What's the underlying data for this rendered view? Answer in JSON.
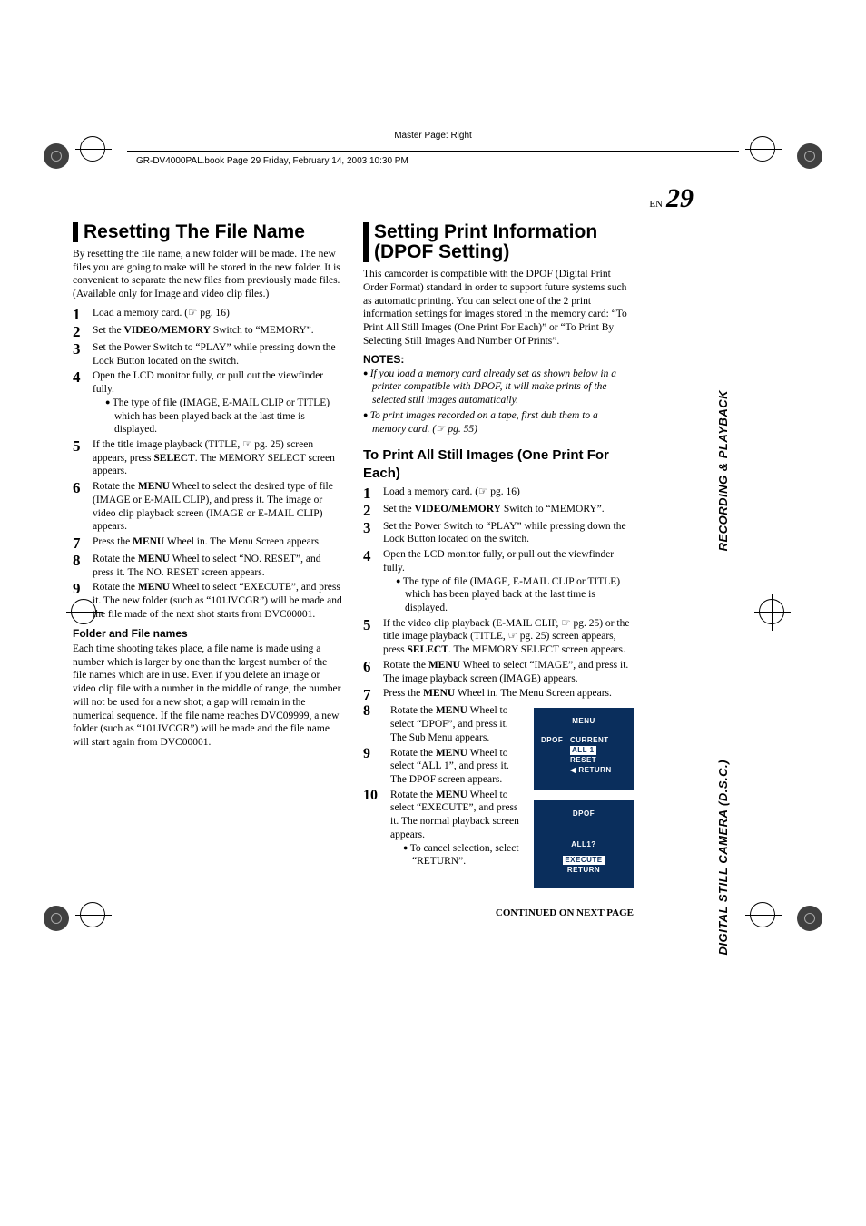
{
  "masterPage": "Master Page: Right",
  "headerText": "GR-DV4000PAL.book  Page 29  Friday, February 14, 2003  10:30 PM",
  "pageLabel": {
    "prefix": "EN",
    "number": "29"
  },
  "sideTabs": [
    "RECORDING & PLAYBACK",
    "DIGITAL STILL CAMERA (D.S.C.)"
  ],
  "left": {
    "title": "Resetting The File Name",
    "intro": "By resetting the file name, a new folder will be made. The new files you are going to make will be stored in the new folder. It is convenient to separate the new files from previously made files. (Available only for Image and video clip files.)",
    "steps": [
      {
        "n": "1",
        "text": "Load a memory card. (☞ pg. 16)"
      },
      {
        "n": "2",
        "html": "Set the <b class='term'>VIDEO/MEMORY</b> Switch to “MEMORY”."
      },
      {
        "n": "3",
        "text": "Set the Power Switch to “PLAY” while pressing down the Lock Button located on the switch."
      },
      {
        "n": "4",
        "text": "Open the LCD monitor fully, or pull out the viewfinder fully.",
        "bullets": [
          "The type of file (IMAGE, E-MAIL CLIP or TITLE) which has been played back at the last time is displayed."
        ]
      },
      {
        "n": "5",
        "html": "If the title image playback (TITLE, ☞ pg. 25) screen appears, press <b class='term'>SELECT</b>. The MEMORY SELECT screen appears."
      },
      {
        "n": "6",
        "html": "Rotate the <b class='term'>MENU</b> Wheel to select the desired type of file (IMAGE or E-MAIL CLIP), and press it. The image or video clip playback screen (IMAGE or E-MAIL CLIP) appears."
      },
      {
        "n": "7",
        "html": "Press the <b class='term'>MENU</b> Wheel in. The Menu Screen appears."
      },
      {
        "n": "8",
        "html": "Rotate the <b class='term'>MENU</b> Wheel to select “NO. RESET”, and press it. The NO. RESET screen appears."
      },
      {
        "n": "9",
        "html": "Rotate the <b class='term'>MENU</b> Wheel to select “EXECUTE”, and press it. The new folder (such as “101JVCGR”) will be made and the file made of the next shot starts from DVC00001."
      }
    ],
    "subHead": "Folder and File names",
    "subBody": "Each time shooting takes place, a file name is made using a number which is larger by one than the largest number of the file names which are in use. Even if you delete an image or video clip file with a number in the middle of range, the number will not be used for a new shot; a gap will remain in the numerical sequence. If the file name reaches DVC09999, a new folder (such as “101JVCGR”) will be made and the file name will start again from DVC00001."
  },
  "right": {
    "title": "Setting Print Information (DPOF Setting)",
    "intro": "This camcorder is compatible with the DPOF (Digital Print Order Format) standard in order to support future systems such as automatic printing. You can select one of the 2 print information settings for images stored in the memory card: “To Print All Still Images (One Print For Each)” or “To Print By Selecting Still Images And Number Of Prints”.",
    "notesHead": "NOTES:",
    "notes": [
      "If you load a memory card already set as shown below in a printer compatible with DPOF, it will make prints of the selected still images automatically.",
      "To print images recorded on a tape, first dub them to a memory card. (☞ pg. 55)"
    ],
    "h2": "To Print All Still Images (One Print For Each)",
    "steps": [
      {
        "n": "1",
        "text": "Load a memory card. (☞ pg. 16)"
      },
      {
        "n": "2",
        "html": "Set the <b class='term'>VIDEO/MEMORY</b> Switch to “MEMORY”."
      },
      {
        "n": "3",
        "text": "Set the Power Switch to “PLAY” while pressing down the Lock Button located on the switch."
      },
      {
        "n": "4",
        "text": "Open the LCD monitor fully, or pull out the viewfinder fully.",
        "bullets": [
          "The type of file (IMAGE, E-MAIL CLIP or TITLE) which has been played back at the last time is displayed."
        ]
      },
      {
        "n": "5",
        "html": "If the video clip playback (E-MAIL CLIP, ☞ pg. 25) or the title image playback (TITLE, ☞ pg. 25) screen appears, press <b class='term'>SELECT</b>. The MEMORY SELECT screen appears."
      },
      {
        "n": "6",
        "html": "Rotate the <b class='term'>MENU</b> Wheel to select “IMAGE”, and press it. The image playback screen (IMAGE) appears."
      },
      {
        "n": "7",
        "html": "Press the <b class='term'>MENU</b> Wheel in. The Menu Screen appears."
      }
    ],
    "stepsWithOsd": [
      {
        "n": "8",
        "html": "Rotate the <b class='term'>MENU</b> Wheel to select “DPOF”, and press it. The Sub Menu appears."
      },
      {
        "n": "9",
        "html": "Rotate the <b class='term'>MENU</b> Wheel to select “ALL 1”, and press it. The DPOF screen appears."
      },
      {
        "n": "10",
        "html": "Rotate the <b class='term'>MENU</b> Wheel to select “EXECUTE”, and press it. The normal playback screen appears.",
        "bullets": [
          "To cancel selection, select “RETURN”."
        ]
      }
    ],
    "osd1": {
      "title": "MENU",
      "left": "DPOF",
      "items": [
        "CURRENT",
        "ALL 1",
        "RESET",
        "RETURN"
      ],
      "highlight": "ALL 1",
      "returnPrefix": true
    },
    "osd2": {
      "title": "DPOF",
      "line1": "ALL1?",
      "line2": "EXECUTE",
      "line3": "RETURN",
      "highlight": "EXECUTE"
    },
    "continued": "CONTINUED ON NEXT PAGE"
  },
  "colors": {
    "osdBg": "#0a2e5c",
    "osdFg": "#ffffff"
  }
}
